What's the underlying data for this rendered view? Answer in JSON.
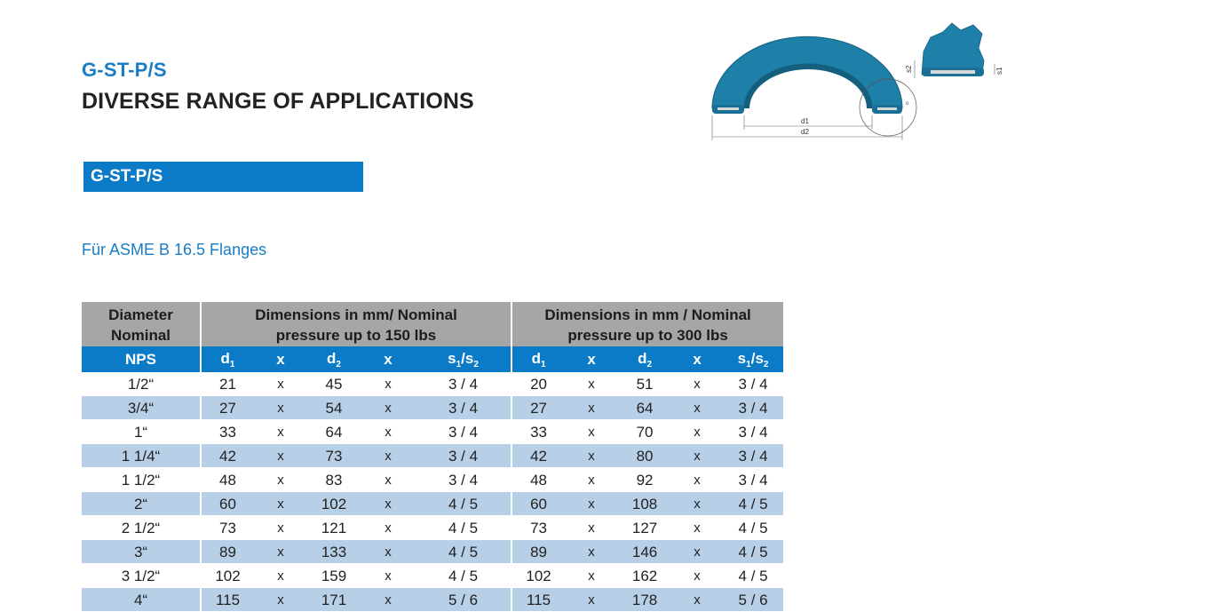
{
  "header": {
    "product_code": "G-ST-P/S",
    "headline": "DIVERSE RANGE OF APPLICATIONS"
  },
  "section": {
    "label": "G-ST-P/S",
    "subtitle": "Für ASME B 16.5 Flanges"
  },
  "figure": {
    "labels": {
      "d1": "d1",
      "d2": "d2",
      "s1": "s1",
      "s2": "s2"
    },
    "colors": {
      "gasket": "#1e7fa8",
      "gasket_dark": "#145f7e",
      "core": "#d9d9d9"
    }
  },
  "table": {
    "group_headers": {
      "diameter": "Diameter Nominal",
      "dim150": "Dimensions in mm/ Nominal pressure up to 150 lbs",
      "dim300": "Dimensions in mm / Nominal pressure up to 300 lbs"
    },
    "column_headers": {
      "nps": "NPS",
      "d": "d",
      "x": "x",
      "s": "s",
      "slash": "/",
      "sub1": "1",
      "sub2": "2"
    },
    "rows": [
      {
        "nps": "1/2“",
        "d1_150": "21",
        "d2_150": "45",
        "s_150": "3 / 4",
        "d1_300": "20",
        "d2_300": "51",
        "s_300": "3 / 4"
      },
      {
        "nps": "3/4“",
        "d1_150": "27",
        "d2_150": "54",
        "s_150": "3 / 4",
        "d1_300": "27",
        "d2_300": "64",
        "s_300": "3 / 4"
      },
      {
        "nps": "1“",
        "d1_150": "33",
        "d2_150": "64",
        "s_150": "3 / 4",
        "d1_300": "33",
        "d2_300": "70",
        "s_300": "3 / 4"
      },
      {
        "nps": "1 1/4“",
        "d1_150": "42",
        "d2_150": "73",
        "s_150": "3 / 4",
        "d1_300": "42",
        "d2_300": "80",
        "s_300": "3 / 4"
      },
      {
        "nps": "1 1/2“",
        "d1_150": "48",
        "d2_150": "83",
        "s_150": "3 / 4",
        "d1_300": "48",
        "d2_300": "92",
        "s_300": "3 / 4"
      },
      {
        "nps": "2“",
        "d1_150": "60",
        "d2_150": "102",
        "s_150": "4 / 5",
        "d1_300": "60",
        "d2_300": "108",
        "s_300": "4 / 5"
      },
      {
        "nps": "2 1/2“",
        "d1_150": "73",
        "d2_150": "121",
        "s_150": "4 / 5",
        "d1_300": "73",
        "d2_300": "127",
        "s_300": "4 / 5"
      },
      {
        "nps": "3“",
        "d1_150": "89",
        "d2_150": "133",
        "s_150": "4 / 5",
        "d1_300": "89",
        "d2_300": "146",
        "s_300": "4 / 5"
      },
      {
        "nps": "3 1/2“",
        "d1_150": "102",
        "d2_150": "159",
        "s_150": "4 / 5",
        "d1_300": "102",
        "d2_300": "162",
        "s_300": "4 / 5"
      },
      {
        "nps": "4“",
        "d1_150": "115",
        "d2_150": "171",
        "s_150": "5 / 6",
        "d1_300": "115",
        "d2_300": "178",
        "s_300": "5 / 6"
      }
    ]
  }
}
